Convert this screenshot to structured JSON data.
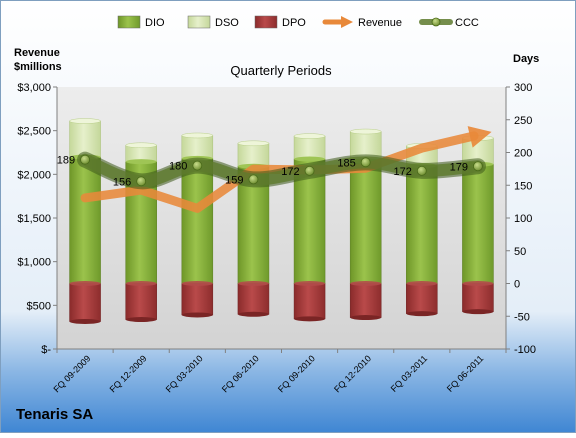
{
  "chart_data": {
    "type": "bar",
    "title": "Quarterly Periods",
    "company": "Tenaris SA",
    "left_axis_label_line1": "Revenue",
    "left_axis_label_line2": "$millions",
    "right_axis_label": "Days",
    "categories": [
      "FQ 09-2009",
      "FQ 12-2009",
      "FQ 03-2010",
      "FQ 06-2010",
      "FQ 09-2010",
      "FQ 12-2010",
      "FQ 03-2011",
      "FQ 06-2011"
    ],
    "left_ticks": [
      "$-",
      "$500",
      "$1,000",
      "$1,500",
      "$2,000",
      "$2,500",
      "$3,000"
    ],
    "right_ticks": [
      "-100",
      "-50",
      "0",
      "50",
      "100",
      "150",
      "200",
      "250",
      "300"
    ],
    "left_ylim": [
      0,
      3000
    ],
    "right_ylim": [
      -100,
      300
    ],
    "legend_position": "top",
    "grid": false,
    "series": [
      {
        "name": "DIO",
        "axis": "right",
        "kind": "bar",
        "color": "#8db040",
        "values": [
          193,
          186,
          191,
          179,
          190,
          187,
          180,
          182
        ]
      },
      {
        "name": "DSO",
        "axis": "right",
        "kind": "bar",
        "color": "#d7e7b2",
        "values": [
          55,
          25,
          35,
          35,
          35,
          45,
          30,
          40
        ]
      },
      {
        "name": "DPO",
        "axis": "right",
        "kind": "bar",
        "color": "#a33c3c",
        "values": [
          -58,
          -55,
          -48,
          -47,
          -54,
          -52,
          -46,
          -43
        ]
      },
      {
        "name": "Revenue",
        "axis": "left",
        "kind": "arrow-line",
        "color": "#e8893a",
        "values": [
          1730,
          1820,
          1610,
          2060,
          2050,
          2070,
          2300,
          2450
        ]
      },
      {
        "name": "CCC",
        "axis": "right",
        "kind": "line",
        "color": "#5e7b2d",
        "values": [
          189,
          156,
          180,
          159,
          172,
          185,
          172,
          179
        ]
      }
    ],
    "ccc_labels": [
      "189",
      "156",
      "180",
      "159",
      "172",
      "185",
      "172",
      "179"
    ]
  }
}
